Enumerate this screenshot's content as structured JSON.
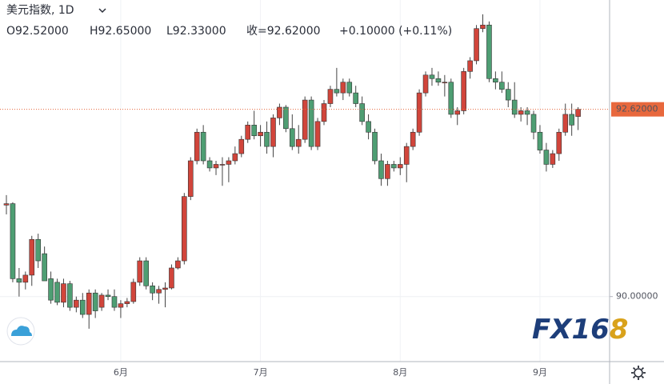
{
  "chart_data": {
    "type": "candlestick",
    "title": "美元指数, 1D",
    "ohlc_labels": [
      "O92.52000",
      "H92.65000",
      "L92.33000",
      "收=92.62000",
      "+0.10000 (+0.11%)"
    ],
    "categories": [
      null,
      null,
      null,
      null,
      null,
      null,
      null,
      null,
      null,
      null,
      null,
      null,
      null,
      null,
      null,
      null,
      null,
      null,
      "6月",
      null,
      null,
      null,
      null,
      null,
      null,
      null,
      null,
      null,
      null,
      null,
      null,
      null,
      null,
      null,
      null,
      null,
      null,
      null,
      null,
      null,
      "7月",
      null,
      null,
      null,
      null,
      null,
      null,
      null,
      null,
      null,
      null,
      null,
      null,
      null,
      null,
      null,
      null,
      null,
      null,
      null,
      null,
      null,
      "8月",
      null,
      null,
      null,
      null,
      null,
      null,
      null,
      null,
      null,
      null,
      null,
      null,
      null,
      null,
      null,
      null,
      null,
      null,
      null,
      null,
      null,
      "9月",
      null,
      null,
      null,
      null,
      null,
      null
    ],
    "open": [
      91.28,
      91.3,
      90.25,
      90.2,
      90.3,
      90.8,
      90.6,
      90.25,
      90.2,
      89.92,
      90.18,
      89.85,
      89.95,
      89.75,
      90.05,
      89.85,
      90.02,
      90.0,
      89.85,
      89.9,
      89.93,
      90.2,
      90.5,
      90.15,
      90.05,
      90.1,
      90.12,
      90.4,
      90.5,
      91.4,
      91.9,
      92.3,
      91.9,
      91.8,
      91.85,
      91.85,
      91.9,
      92.0,
      92.2,
      92.4,
      92.25,
      92.3,
      92.1,
      92.5,
      92.65,
      92.35,
      92.1,
      92.2,
      92.75,
      92.1,
      92.45,
      92.7,
      92.9,
      92.85,
      93.0,
      92.85,
      92.7,
      92.45,
      92.3,
      91.9,
      91.65,
      91.85,
      91.8,
      91.85,
      92.1,
      92.3,
      92.85,
      93.1,
      93.05,
      93.0,
      93.0,
      92.55,
      92.6,
      93.15,
      93.3,
      93.75,
      93.8,
      93.05,
      93.0,
      92.9,
      92.75,
      92.55,
      92.6,
      92.55,
      92.3,
      92.05,
      91.85,
      92.0,
      92.3,
      92.55,
      92.52
    ],
    "high": [
      91.42,
      91.32,
      90.4,
      90.35,
      90.85,
      90.88,
      90.7,
      90.35,
      90.25,
      90.25,
      90.22,
      90.0,
      90.05,
      90.1,
      90.1,
      90.05,
      90.1,
      90.1,
      89.95,
      89.98,
      90.25,
      90.55,
      90.55,
      90.2,
      90.15,
      90.2,
      90.45,
      90.55,
      91.45,
      91.95,
      92.35,
      92.4,
      91.95,
      91.9,
      91.95,
      91.95,
      92.1,
      92.25,
      92.45,
      92.6,
      92.4,
      92.45,
      92.55,
      92.7,
      92.68,
      92.55,
      92.4,
      92.8,
      92.8,
      92.5,
      92.75,
      92.95,
      93.2,
      93.05,
      93.05,
      92.95,
      92.8,
      92.55,
      92.35,
      92.0,
      91.9,
      91.9,
      91.95,
      92.15,
      92.35,
      92.9,
      93.15,
      93.2,
      93.15,
      93.1,
      93.05,
      92.65,
      93.2,
      93.35,
      93.8,
      93.95,
      93.85,
      93.15,
      93.15,
      93.0,
      93.0,
      92.65,
      92.65,
      92.6,
      92.4,
      92.15,
      92.05,
      92.35,
      92.7,
      92.7,
      92.65
    ],
    "low": [
      91.15,
      90.2,
      90.0,
      90.1,
      90.15,
      90.4,
      90.25,
      89.9,
      89.88,
      89.85,
      89.8,
      89.78,
      89.7,
      89.55,
      89.7,
      89.8,
      89.95,
      89.8,
      89.7,
      89.85,
      89.9,
      90.15,
      90.1,
      89.95,
      89.9,
      89.85,
      90.1,
      90.38,
      90.45,
      91.35,
      91.85,
      91.85,
      91.75,
      91.7,
      91.55,
      91.6,
      91.85,
      91.95,
      92.15,
      92.2,
      92.1,
      92.0,
      91.95,
      92.4,
      92.3,
      92.05,
      92.0,
      92.15,
      92.05,
      92.05,
      92.4,
      92.65,
      92.8,
      92.75,
      92.8,
      92.65,
      92.4,
      92.2,
      91.85,
      91.55,
      91.55,
      91.75,
      91.7,
      91.6,
      92.05,
      92.25,
      92.8,
      92.95,
      92.95,
      92.8,
      92.5,
      92.4,
      92.55,
      93.05,
      93.25,
      93.7,
      93.0,
      92.9,
      92.85,
      92.65,
      92.5,
      92.45,
      92.4,
      92.2,
      92.0,
      91.75,
      91.8,
      91.9,
      92.25,
      92.25,
      92.33
    ],
    "close": [
      91.3,
      90.25,
      90.2,
      90.3,
      90.8,
      90.5,
      90.22,
      89.95,
      89.92,
      90.18,
      89.85,
      89.95,
      89.75,
      90.05,
      89.8,
      90.02,
      90.0,
      89.85,
      89.9,
      89.93,
      90.2,
      90.5,
      90.15,
      90.05,
      90.1,
      90.12,
      90.4,
      90.5,
      91.4,
      91.9,
      92.3,
      91.9,
      91.8,
      91.85,
      91.85,
      91.9,
      92.0,
      92.2,
      92.4,
      92.25,
      92.3,
      92.1,
      92.5,
      92.65,
      92.35,
      92.1,
      92.2,
      92.75,
      92.1,
      92.45,
      92.7,
      92.9,
      92.85,
      93.0,
      92.85,
      92.7,
      92.45,
      92.3,
      91.9,
      91.65,
      91.85,
      91.8,
      91.85,
      92.1,
      92.3,
      92.85,
      93.1,
      93.05,
      93.0,
      93.0,
      92.55,
      92.6,
      93.15,
      93.3,
      93.75,
      93.8,
      93.05,
      93.0,
      92.9,
      92.75,
      92.55,
      92.6,
      92.55,
      92.3,
      92.05,
      91.85,
      92.0,
      92.3,
      92.55,
      92.4,
      92.62
    ],
    "up_color": "#d1453b",
    "down_color": "#4e9e73",
    "ylim": [
      89.09,
      94.15
    ],
    "yticks": [
      {
        "value": 90,
        "label": "90.00000"
      }
    ],
    "last_price": {
      "value": 92.62,
      "label": "92.62000"
    },
    "last_price_color": "#e8683d",
    "grid": true,
    "watermark": {
      "main": "FX16",
      "accent": "8"
    }
  }
}
